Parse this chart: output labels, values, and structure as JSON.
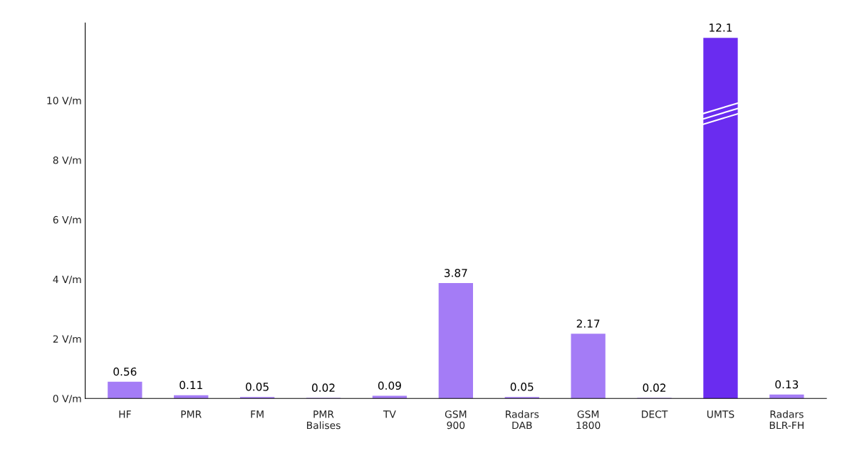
{
  "chart_data": {
    "type": "bar",
    "categories": [
      "HF",
      "PMR",
      "FM",
      "PMR\nBalises",
      "TV",
      "GSM\n900",
      "Radars\nDAB",
      "GSM\n1800",
      "DECT",
      "UMTS",
      "Radars\nBLR-FH"
    ],
    "values": [
      0.56,
      0.11,
      0.05,
      0.02,
      0.09,
      3.87,
      0.05,
      2.17,
      0.02,
      12.1,
      0.13
    ],
    "colors": [
      "#a47cf6",
      "#a47cf6",
      "#a47cf6",
      "#a47cf6",
      "#a47cf6",
      "#a47cf6",
      "#a47cf6",
      "#a47cf6",
      "#a47cf6",
      "#6a2cf0",
      "#a47cf6"
    ],
    "data_labels": true,
    "ylim": [
      0,
      12.6
    ],
    "yticks": [
      {
        "value": 0,
        "label": "0 V/m"
      },
      {
        "value": 2,
        "label": "2 V/m"
      },
      {
        "value": 4,
        "label": "4 V/m"
      },
      {
        "value": 6,
        "label": "6 V/m"
      },
      {
        "value": 8,
        "label": "8 V/m"
      },
      {
        "value": 10,
        "label": "10 V/m"
      }
    ],
    "grid": false,
    "legend": false
  }
}
